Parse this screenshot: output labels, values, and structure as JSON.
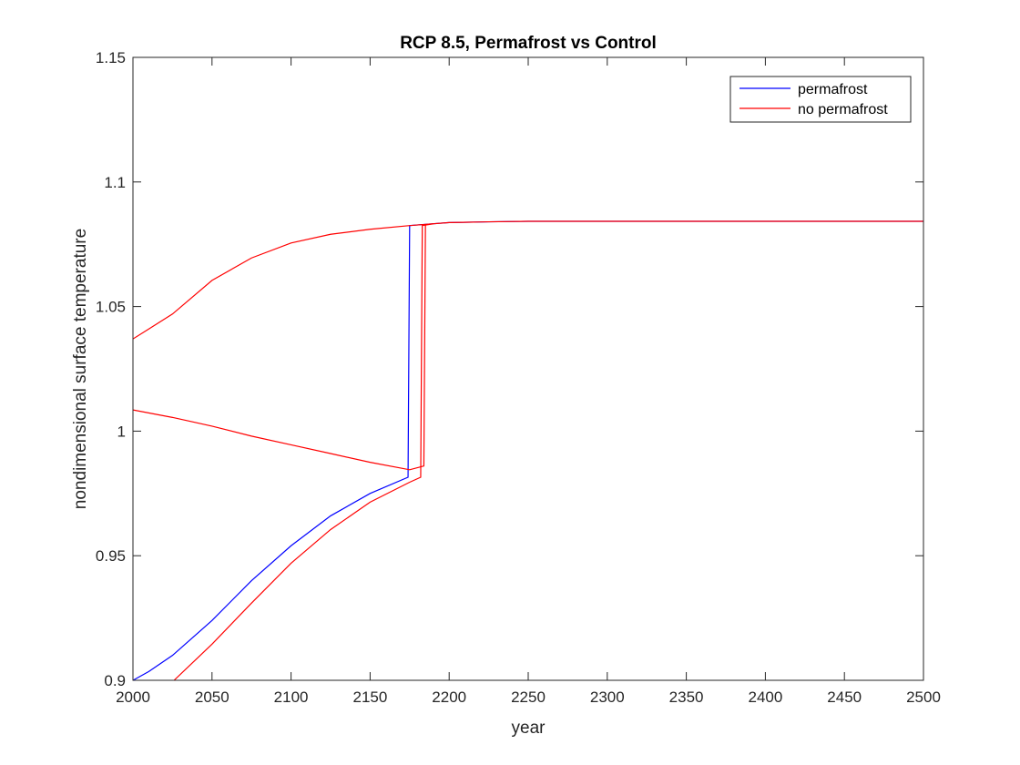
{
  "chart_data": {
    "type": "line",
    "title": "RCP 8.5, Permafrost vs Control",
    "xlabel": "year",
    "ylabel": "nondimensional surface temperature",
    "xlim": [
      2000,
      2500
    ],
    "ylim": [
      0.9,
      1.15
    ],
    "xticks": [
      2000,
      2050,
      2100,
      2150,
      2200,
      2250,
      2300,
      2350,
      2400,
      2450,
      2500
    ],
    "yticks": [
      0.9,
      0.95,
      1,
      1.05,
      1.1,
      1.15
    ],
    "xtick_labels": [
      "2000",
      "2050",
      "2100",
      "2150",
      "2200",
      "2250",
      "2300",
      "2350",
      "2400",
      "2450",
      "2500"
    ],
    "ytick_labels": [
      "0.9",
      "0.95",
      "1",
      "1.05",
      "1.1",
      "1.15"
    ],
    "grid": false,
    "legend_position": "top-right",
    "series": [
      {
        "name": "permafrost",
        "color": "#0000ff",
        "points": [
          [
            2000,
            0.9
          ],
          [
            2010,
            0.9035
          ],
          [
            2025,
            0.91
          ],
          [
            2050,
            0.924
          ],
          [
            2075,
            0.94
          ],
          [
            2100,
            0.954
          ],
          [
            2125,
            0.966
          ],
          [
            2150,
            0.975
          ],
          [
            2174,
            0.9815
          ],
          [
            2175,
            1.0825
          ],
          [
            2185,
            1.083
          ],
          [
            2200,
            1.0837
          ],
          [
            2225,
            1.084
          ],
          [
            2250,
            1.0842
          ],
          [
            2300,
            1.0842
          ],
          [
            2400,
            1.0842
          ],
          [
            2500,
            1.0842
          ]
        ]
      },
      {
        "name": "no permafrost",
        "color": "#ff0000",
        "segments": [
          [
            [
              2000,
              1.037
            ],
            [
              2010,
              1.041
            ],
            [
              2025,
              1.047
            ],
            [
              2050,
              1.0605
            ],
            [
              2075,
              1.0695
            ],
            [
              2100,
              1.0755
            ],
            [
              2125,
              1.079
            ],
            [
              2150,
              1.081
            ],
            [
              2175,
              1.0825
            ],
            [
              2200,
              1.0837
            ],
            [
              2225,
              1.084
            ],
            [
              2250,
              1.0842
            ],
            [
              2300,
              1.0842
            ],
            [
              2400,
              1.0842
            ],
            [
              2500,
              1.0842
            ]
          ],
          [
            [
              2000,
              1.0085
            ],
            [
              2025,
              1.0055
            ],
            [
              2050,
              1.002
            ],
            [
              2075,
              0.998
            ],
            [
              2100,
              0.9945
            ],
            [
              2125,
              0.991
            ],
            [
              2150,
              0.9875
            ],
            [
              2175,
              0.9845
            ],
            [
              2184,
              0.986
            ],
            [
              2185,
              1.083
            ]
          ],
          [
            [
              2026,
              0.9
            ],
            [
              2050,
              0.9145
            ],
            [
              2075,
              0.931
            ],
            [
              2100,
              0.947
            ],
            [
              2125,
              0.9605
            ],
            [
              2150,
              0.9715
            ],
            [
              2175,
              0.9795
            ],
            [
              2182,
              0.9815
            ],
            [
              2183,
              1.0825
            ],
            [
              2190,
              1.0832
            ]
          ]
        ]
      }
    ]
  }
}
